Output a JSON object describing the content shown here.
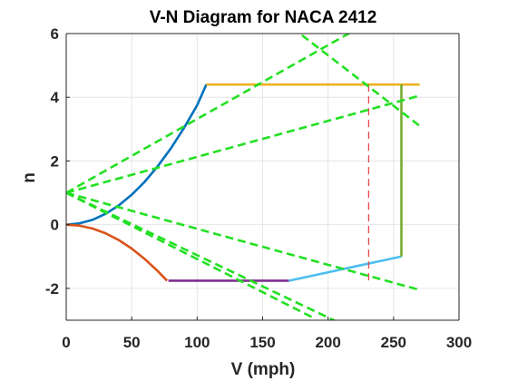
{
  "chart_data": {
    "type": "line",
    "title": "V-N Diagram for NACA 2412",
    "xlabel": "V (mph)",
    "ylabel": "n",
    "xlim": [
      0,
      300
    ],
    "ylim": [
      -3,
      6
    ],
    "xticks": [
      "0",
      "50",
      "100",
      "150",
      "200",
      "250",
      "300"
    ],
    "yticks": [
      "6",
      "4",
      "2",
      "0",
      "-2"
    ],
    "grid": true,
    "colors": {
      "positive_stall": "#0072BD",
      "negative_stall": "#D95319",
      "positive_limit": "#EDB120",
      "negative_limit": "#7E2F8E",
      "dive_line": "#77AC30",
      "negative_gust_edge": "#4DBEEE",
      "cruise_speed": "#E8454A",
      "gust_lines": "#22E022"
    },
    "series": [
      {
        "key": "positive_stall",
        "style": "solid",
        "points": [
          [
            0,
            0
          ],
          [
            10,
            0.04
          ],
          [
            20,
            0.15
          ],
          [
            30,
            0.34
          ],
          [
            40,
            0.6
          ],
          [
            50,
            0.94
          ],
          [
            60,
            1.35
          ],
          [
            70,
            1.84
          ],
          [
            80,
            2.4
          ],
          [
            90,
            3.04
          ],
          [
            100,
            3.75
          ],
          [
            107,
            4.4
          ]
        ]
      },
      {
        "key": "negative_stall",
        "style": "solid",
        "points": [
          [
            0,
            0
          ],
          [
            10,
            -0.03
          ],
          [
            20,
            -0.12
          ],
          [
            30,
            -0.27
          ],
          [
            40,
            -0.48
          ],
          [
            50,
            -0.75
          ],
          [
            60,
            -1.08
          ],
          [
            70,
            -1.46
          ],
          [
            77,
            -1.76
          ]
        ]
      },
      {
        "key": "positive_limit",
        "style": "solid",
        "points": [
          [
            107,
            4.4
          ],
          [
            270,
            4.4
          ]
        ]
      },
      {
        "key": "negative_limit",
        "style": "solid",
        "points": [
          [
            78,
            -1.76
          ],
          [
            170,
            -1.76
          ]
        ]
      },
      {
        "key": "negative_gust_edge",
        "style": "solid",
        "points": [
          [
            170,
            -1.76
          ],
          [
            256,
            -1.0
          ]
        ]
      },
      {
        "key": "dive_line",
        "style": "solid",
        "points": [
          [
            256,
            4.4
          ],
          [
            256,
            -1.0
          ]
        ]
      },
      {
        "key": "cruise_speed",
        "style": "dashed",
        "points": [
          [
            231,
            4.4
          ],
          [
            231,
            -1.76
          ]
        ]
      },
      {
        "key": "gust_lines",
        "style": "dashed",
        "points": [
          [
            0,
            1
          ],
          [
            220,
            6.1
          ]
        ]
      },
      {
        "key": "gust_lines",
        "style": "dashed",
        "points": [
          [
            0,
            1
          ],
          [
            270,
            4.05
          ]
        ]
      },
      {
        "key": "gust_lines",
        "style": "dashed",
        "points": [
          [
            0,
            1
          ],
          [
            270,
            -2.05
          ]
        ]
      },
      {
        "key": "gust_lines",
        "style": "dashed",
        "points": [
          [
            0,
            1
          ],
          [
            235,
            -3.6
          ]
        ]
      },
      {
        "key": "gust_lines",
        "style": "dashed",
        "points": [
          [
            0,
            1
          ],
          [
            190,
            -2.95
          ]
        ]
      },
      {
        "key": "gust_lines",
        "style": "dashed",
        "points": [
          [
            180,
            5.95
          ],
          [
            270,
            3.1
          ]
        ]
      }
    ]
  }
}
